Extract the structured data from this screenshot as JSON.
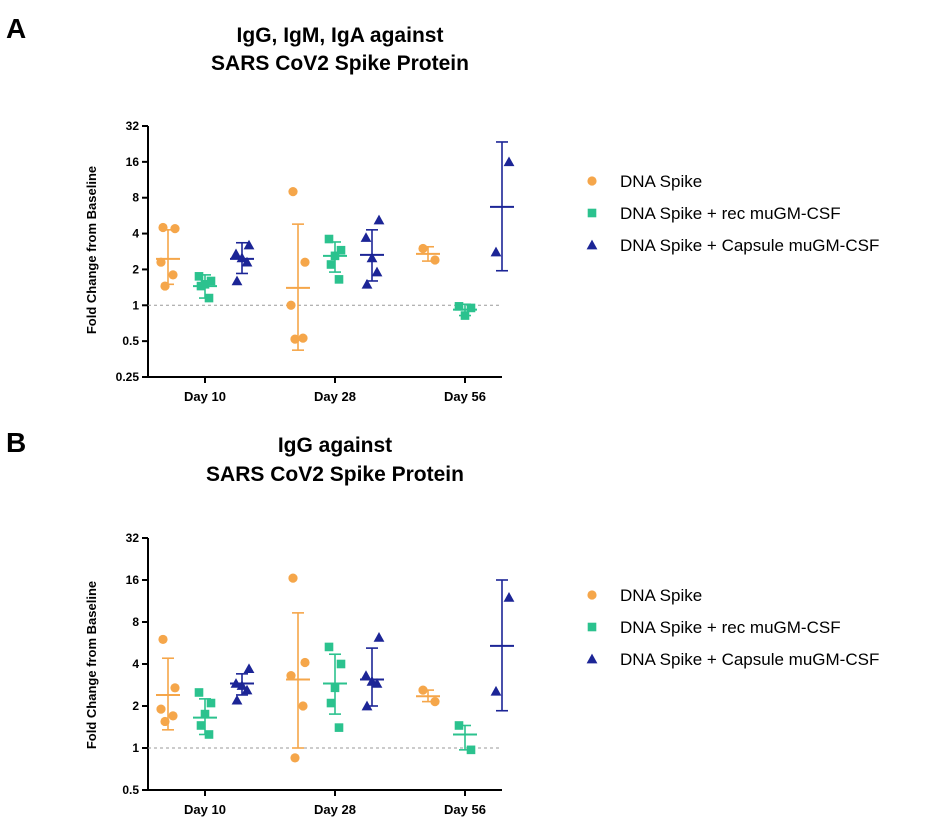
{
  "chart_data": [
    {
      "panel": "A",
      "type": "scatter",
      "title": [
        "IgG, IgM, IgA against",
        "SARS CoV2 Spike Protein"
      ],
      "ylabel": "Fold Change from Baseline",
      "xlabel": "",
      "yscale": "log2",
      "ylim": [
        0.25,
        32
      ],
      "yticks": [
        {
          "value": 0.25,
          "label": "0.25"
        },
        {
          "value": 0.5,
          "label": "0.5"
        },
        {
          "value": 1,
          "label": "1"
        },
        {
          "value": 2,
          "label": "2"
        },
        {
          "value": 4,
          "label": "4"
        },
        {
          "value": 8,
          "label": "8"
        },
        {
          "value": 16,
          "label": "16"
        },
        {
          "value": 32,
          "label": "32"
        }
      ],
      "baseline": 1,
      "categories": [
        "Day 10",
        "Day 28",
        "Day 56"
      ],
      "series": [
        {
          "name": "DNA Spike",
          "color": "#F5A64A",
          "marker": "circle",
          "groups": [
            {
              "category": "Day 10",
              "points": [
                4.5,
                4.4,
                2.3,
                1.8,
                1.45
              ],
              "mean": 2.45,
              "sd_low": 1.5,
              "sd_high": 4.3
            },
            {
              "category": "Day 28",
              "points": [
                9.0,
                2.3,
                1.0,
                0.53,
                0.52
              ],
              "mean": 1.4,
              "sd_low": 0.42,
              "sd_high": 4.8
            },
            {
              "category": "Day 56",
              "points": [
                3.0,
                2.4
              ],
              "mean": 2.7,
              "sd_low": 2.35,
              "sd_high": 3.1
            }
          ]
        },
        {
          "name": "DNA Spike + rec muGM-CSF",
          "color": "#2BC28E",
          "marker": "square",
          "groups": [
            {
              "category": "Day 10",
              "points": [
                1.75,
                1.6,
                1.5,
                1.45,
                1.15
              ],
              "mean": 1.45,
              "sd_low": 1.15,
              "sd_high": 1.8
            },
            {
              "category": "Day 28",
              "points": [
                3.6,
                2.9,
                2.6,
                2.2,
                1.65
              ],
              "mean": 2.6,
              "sd_low": 1.9,
              "sd_high": 3.4
            },
            {
              "category": "Day 56",
              "points": [
                0.98,
                0.95,
                0.82
              ],
              "mean": 0.92,
              "sd_low": 0.82,
              "sd_high": 1.02
            }
          ]
        },
        {
          "name": "DNA Spike + Capsule muGM-CSF",
          "color": "#1C2596",
          "marker": "triangle",
          "groups": [
            {
              "category": "Day 10",
              "points": [
                3.2,
                2.7,
                2.5,
                2.3,
                1.6
              ],
              "mean": 2.45,
              "sd_low": 1.85,
              "sd_high": 3.35
            },
            {
              "category": "Day 28",
              "points": [
                5.2,
                3.7,
                2.5,
                1.9,
                1.5
              ],
              "mean": 2.65,
              "sd_low": 1.6,
              "sd_high": 4.3
            },
            {
              "category": "Day 56",
              "points": [
                16.0,
                2.8
              ],
              "mean": 6.7,
              "sd_low": 1.95,
              "sd_high": 23.5
            }
          ]
        }
      ]
    },
    {
      "panel": "B",
      "type": "scatter",
      "title": [
        "IgG against",
        "SARS CoV2 Spike Protein"
      ],
      "ylabel": "Fold Change from Baseline",
      "xlabel": "",
      "yscale": "log2",
      "ylim": [
        0.5,
        32
      ],
      "yticks": [
        {
          "value": 0.5,
          "label": "0.5"
        },
        {
          "value": 1,
          "label": "1"
        },
        {
          "value": 2,
          "label": "2"
        },
        {
          "value": 4,
          "label": "4"
        },
        {
          "value": 8,
          "label": "8"
        },
        {
          "value": 16,
          "label": "16"
        },
        {
          "value": 32,
          "label": "32"
        }
      ],
      "baseline": 1,
      "categories": [
        "Day 10",
        "Day 28",
        "Day 56"
      ],
      "series": [
        {
          "name": "DNA Spike",
          "color": "#F5A64A",
          "marker": "circle",
          "groups": [
            {
              "category": "Day 10",
              "points": [
                6.0,
                2.7,
                1.9,
                1.7,
                1.55
              ],
              "mean": 2.4,
              "sd_low": 1.35,
              "sd_high": 4.4
            },
            {
              "category": "Day 28",
              "points": [
                16.5,
                4.1,
                3.3,
                2.0,
                0.85
              ],
              "mean": 3.1,
              "sd_low": 1.0,
              "sd_high": 9.3
            },
            {
              "category": "Day 56",
              "points": [
                2.6,
                2.15
              ],
              "mean": 2.35,
              "sd_low": 2.15,
              "sd_high": 2.6
            }
          ]
        },
        {
          "name": "DNA Spike + rec muGM-CSF",
          "color": "#2BC28E",
          "marker": "square",
          "groups": [
            {
              "category": "Day 10",
              "points": [
                2.5,
                2.1,
                1.75,
                1.45,
                1.25
              ],
              "mean": 1.65,
              "sd_low": 1.25,
              "sd_high": 2.25
            },
            {
              "category": "Day 28",
              "points": [
                5.3,
                4.0,
                2.7,
                2.1,
                1.4
              ],
              "mean": 2.9,
              "sd_low": 1.75,
              "sd_high": 4.7
            },
            {
              "category": "Day 56",
              "points": [
                1.45,
                0.97
              ],
              "mean": 1.25,
              "sd_low": 0.97,
              "sd_high": 1.45
            }
          ]
        },
        {
          "name": "DNA Spike + Capsule muGM-CSF",
          "color": "#1C2596",
          "marker": "triangle",
          "groups": [
            {
              "category": "Day 10",
              "points": [
                3.7,
                2.9,
                2.8,
                2.6,
                2.2
              ],
              "mean": 2.9,
              "sd_low": 2.4,
              "sd_high": 3.4
            },
            {
              "category": "Day 28",
              "points": [
                6.2,
                3.3,
                3.0,
                2.9,
                2.0
              ],
              "mean": 3.1,
              "sd_low": 2.0,
              "sd_high": 5.2
            },
            {
              "category": "Day 56",
              "points": [
                12.0,
                2.55
              ],
              "mean": 5.4,
              "sd_low": 1.85,
              "sd_high": 16.0
            }
          ]
        }
      ]
    }
  ]
}
